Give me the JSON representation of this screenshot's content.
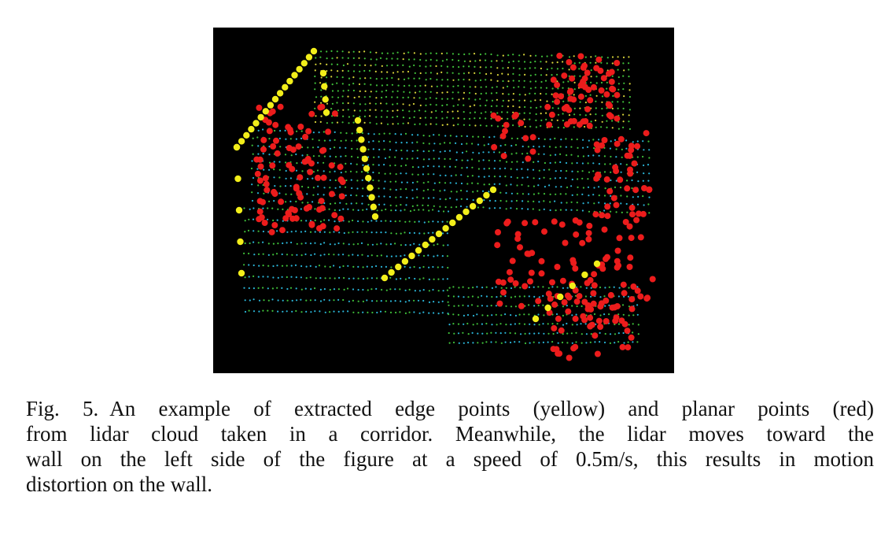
{
  "figure": {
    "background": "#000000",
    "point_colors": {
      "edge": "#f2ee1a",
      "planar": "#ec1c1c",
      "cloud_green": "#3fbf3a",
      "cloud_cyan": "#2ab4d6",
      "cloud_yellow": "#d6d23a"
    }
  },
  "caption": {
    "label": "Fig. 5.",
    "lines": [
      "An example of extracted edge points (yellow) and planar points (red)",
      "from lidar cloud taken in a corridor. Meanwhile, the lidar moves toward the",
      "wall on the left side of the figure at a speed of 0.5m/s, this results in motion",
      "distortion on the wall."
    ]
  }
}
